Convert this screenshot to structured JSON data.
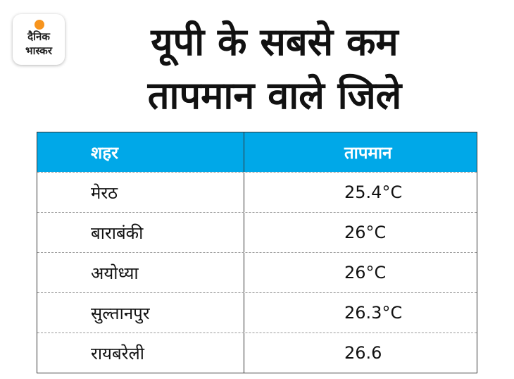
{
  "logo": {
    "lines": [
      "दैनिक",
      "भास्कर"
    ]
  },
  "title": [
    "यूपी के सबसे कम",
    "तापमान वाले जिले"
  ],
  "table": {
    "headers": [
      "शहर",
      "तापमान"
    ],
    "rows": [
      [
        "मेरठ",
        "25.4°C"
      ],
      [
        "बाराबंकी",
        "26°C"
      ],
      [
        "अयोध्या",
        "26°C"
      ],
      [
        "सुल्तानपुर",
        "26.3°C"
      ],
      [
        "रायबरेली",
        "26.6"
      ]
    ]
  }
}
